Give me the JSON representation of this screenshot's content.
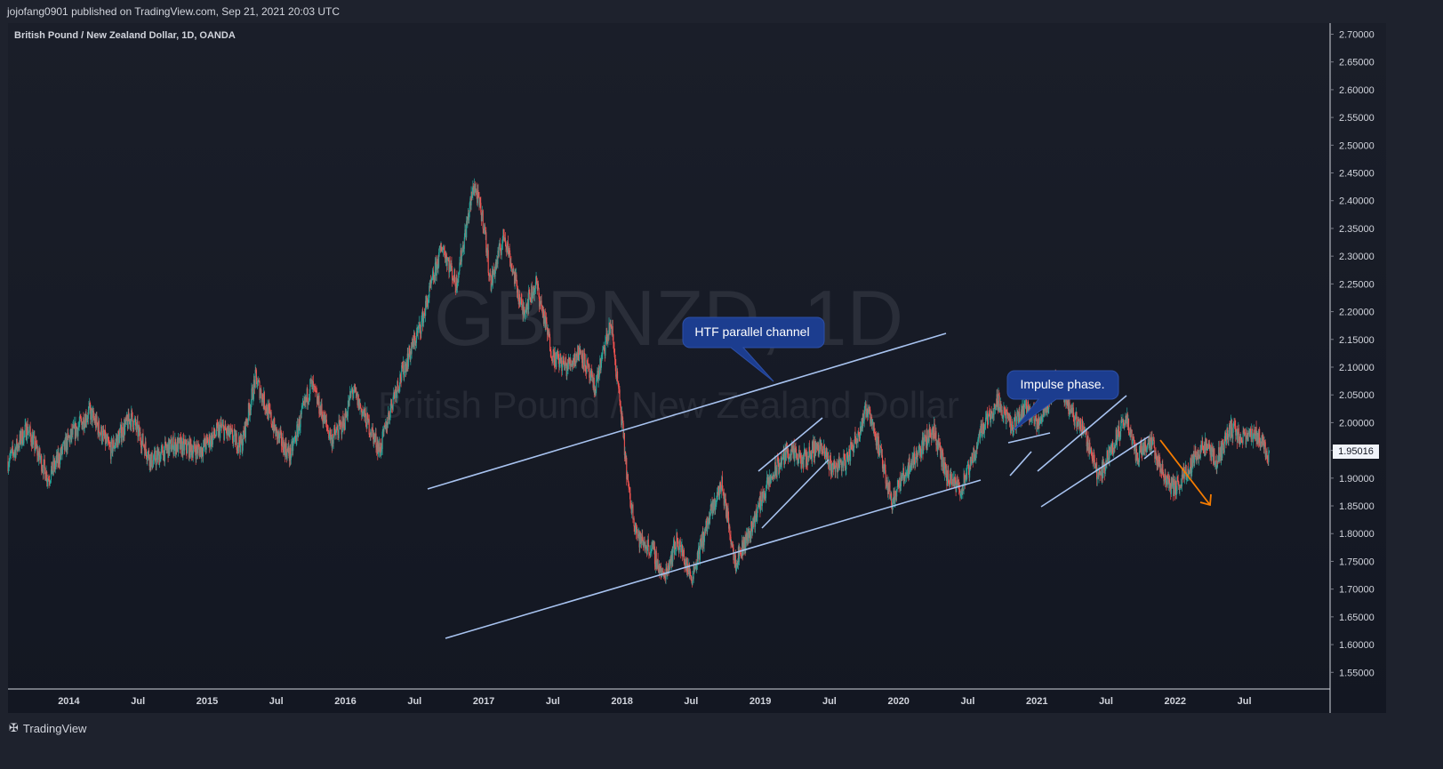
{
  "header": {
    "publisher": "jojofang0901 published on TradingView.com, Sep 21, 2021 20:03 UTC"
  },
  "footer": {
    "brand": "TradingView"
  },
  "chart_data": {
    "type": "candlestick",
    "title": "British Pound / New Zealand Dollar, 1D, OANDA",
    "watermark_symbol": "GBPNZD, 1D",
    "watermark_name": "British Pound / New Zealand Dollar",
    "last_price": "1.95016",
    "ylim": [
      1.52,
      2.72
    ],
    "y_ticks": [
      "2.70000",
      "2.65000",
      "2.60000",
      "2.55000",
      "2.50000",
      "2.45000",
      "2.40000",
      "2.35000",
      "2.30000",
      "2.25000",
      "2.20000",
      "2.15000",
      "2.10000",
      "2.05000",
      "2.00000",
      "1.95000",
      "1.90000",
      "1.85000",
      "1.80000",
      "1.75000",
      "1.70000",
      "1.65000",
      "1.60000",
      "1.55000"
    ],
    "x_ticks": [
      {
        "label": "2014",
        "t": 2014.0
      },
      {
        "label": "Jul",
        "t": 2014.5
      },
      {
        "label": "2015",
        "t": 2015.0
      },
      {
        "label": "Jul",
        "t": 2015.5
      },
      {
        "label": "2016",
        "t": 2016.0
      },
      {
        "label": "Jul",
        "t": 2016.5
      },
      {
        "label": "2017",
        "t": 2017.0
      },
      {
        "label": "Jul",
        "t": 2017.5
      },
      {
        "label": "2018",
        "t": 2018.0
      },
      {
        "label": "Jul",
        "t": 2018.5
      },
      {
        "label": "2019",
        "t": 2019.0
      },
      {
        "label": "Jul",
        "t": 2019.5
      },
      {
        "label": "2020",
        "t": 2020.0
      },
      {
        "label": "Jul",
        "t": 2020.5
      },
      {
        "label": "2021",
        "t": 2021.0
      },
      {
        "label": "Jul",
        "t": 2021.5
      },
      {
        "label": "2022",
        "t": 2022.0
      },
      {
        "label": "Jul",
        "t": 2022.5
      }
    ],
    "xlim": [
      2013.56,
      2023.12
    ],
    "price_path": [
      [
        2013.56,
        1.93
      ],
      [
        2013.7,
        1.99
      ],
      [
        2013.85,
        1.9
      ],
      [
        2014.0,
        1.97
      ],
      [
        2014.15,
        2.02
      ],
      [
        2014.3,
        1.95
      ],
      [
        2014.45,
        2.01
      ],
      [
        2014.6,
        1.93
      ],
      [
        2014.75,
        1.96
      ],
      [
        2014.95,
        1.95
      ],
      [
        2015.1,
        1.99
      ],
      [
        2015.25,
        1.96
      ],
      [
        2015.35,
        2.08
      ],
      [
        2015.5,
        1.98
      ],
      [
        2015.6,
        1.94
      ],
      [
        2015.75,
        2.07
      ],
      [
        2015.9,
        1.97
      ],
      [
        2015.99,
        2.0
      ],
      [
        2016.05,
        2.06
      ],
      [
        2016.25,
        1.95
      ],
      [
        2016.35,
        2.05
      ],
      [
        2016.55,
        2.18
      ],
      [
        2016.7,
        2.32
      ],
      [
        2016.8,
        2.25
      ],
      [
        2016.93,
        2.43
      ],
      [
        2017.0,
        2.36
      ],
      [
        2017.05,
        2.25
      ],
      [
        2017.15,
        2.34
      ],
      [
        2017.28,
        2.2
      ],
      [
        2017.38,
        2.25
      ],
      [
        2017.5,
        2.12
      ],
      [
        2017.6,
        2.1
      ],
      [
        2017.7,
        2.13
      ],
      [
        2017.8,
        2.06
      ],
      [
        2017.92,
        2.18
      ],
      [
        2018.0,
        2.0
      ],
      [
        2018.05,
        1.87
      ],
      [
        2018.12,
        1.79
      ],
      [
        2018.22,
        1.77
      ],
      [
        2018.3,
        1.72
      ],
      [
        2018.4,
        1.79
      ],
      [
        2018.5,
        1.72
      ],
      [
        2018.62,
        1.82
      ],
      [
        2018.72,
        1.89
      ],
      [
        2018.82,
        1.75
      ],
      [
        2018.92,
        1.8
      ],
      [
        2019.02,
        1.87
      ],
      [
        2019.1,
        1.91
      ],
      [
        2019.2,
        1.95
      ],
      [
        2019.3,
        1.93
      ],
      [
        2019.42,
        1.96
      ],
      [
        2019.52,
        1.92
      ],
      [
        2019.62,
        1.93
      ],
      [
        2019.72,
        1.99
      ],
      [
        2019.78,
        2.03
      ],
      [
        2019.85,
        1.96
      ],
      [
        2019.95,
        1.86
      ],
      [
        2020.05,
        1.91
      ],
      [
        2020.15,
        1.95
      ],
      [
        2020.25,
        1.99
      ],
      [
        2020.35,
        1.9
      ],
      [
        2020.45,
        1.88
      ],
      [
        2020.52,
        1.92
      ],
      [
        2020.6,
        1.99
      ],
      [
        2020.72,
        2.04
      ],
      [
        2020.82,
        1.99
      ],
      [
        2020.92,
        2.03
      ],
      [
        2021.0,
        2.0
      ],
      [
        2021.08,
        2.04
      ],
      [
        2021.15,
        2.08
      ],
      [
        2021.25,
        2.02
      ],
      [
        2021.35,
        1.98
      ],
      [
        2021.45,
        1.9
      ],
      [
        2021.55,
        1.96
      ],
      [
        2021.65,
        2.01
      ],
      [
        2021.72,
        1.94
      ],
      [
        2021.82,
        1.97
      ],
      [
        2021.92,
        1.9
      ],
      [
        2022.0,
        1.88
      ],
      [
        2022.1,
        1.92
      ],
      [
        2022.2,
        1.96
      ],
      [
        2022.3,
        1.93
      ],
      [
        2022.4,
        1.99
      ],
      [
        2022.5,
        1.97
      ],
      [
        2022.6,
        1.98
      ],
      [
        2022.68,
        1.94
      ]
    ],
    "annotations": [
      {
        "text": "HTF parallel channel"
      },
      {
        "text": "Impulse phase."
      }
    ],
    "colors": {
      "up": "#26a69a",
      "down": "#ef5350",
      "line": "#a8c3f0",
      "label_bg": "#1c3d8f",
      "arrow": "#f57c00"
    }
  }
}
